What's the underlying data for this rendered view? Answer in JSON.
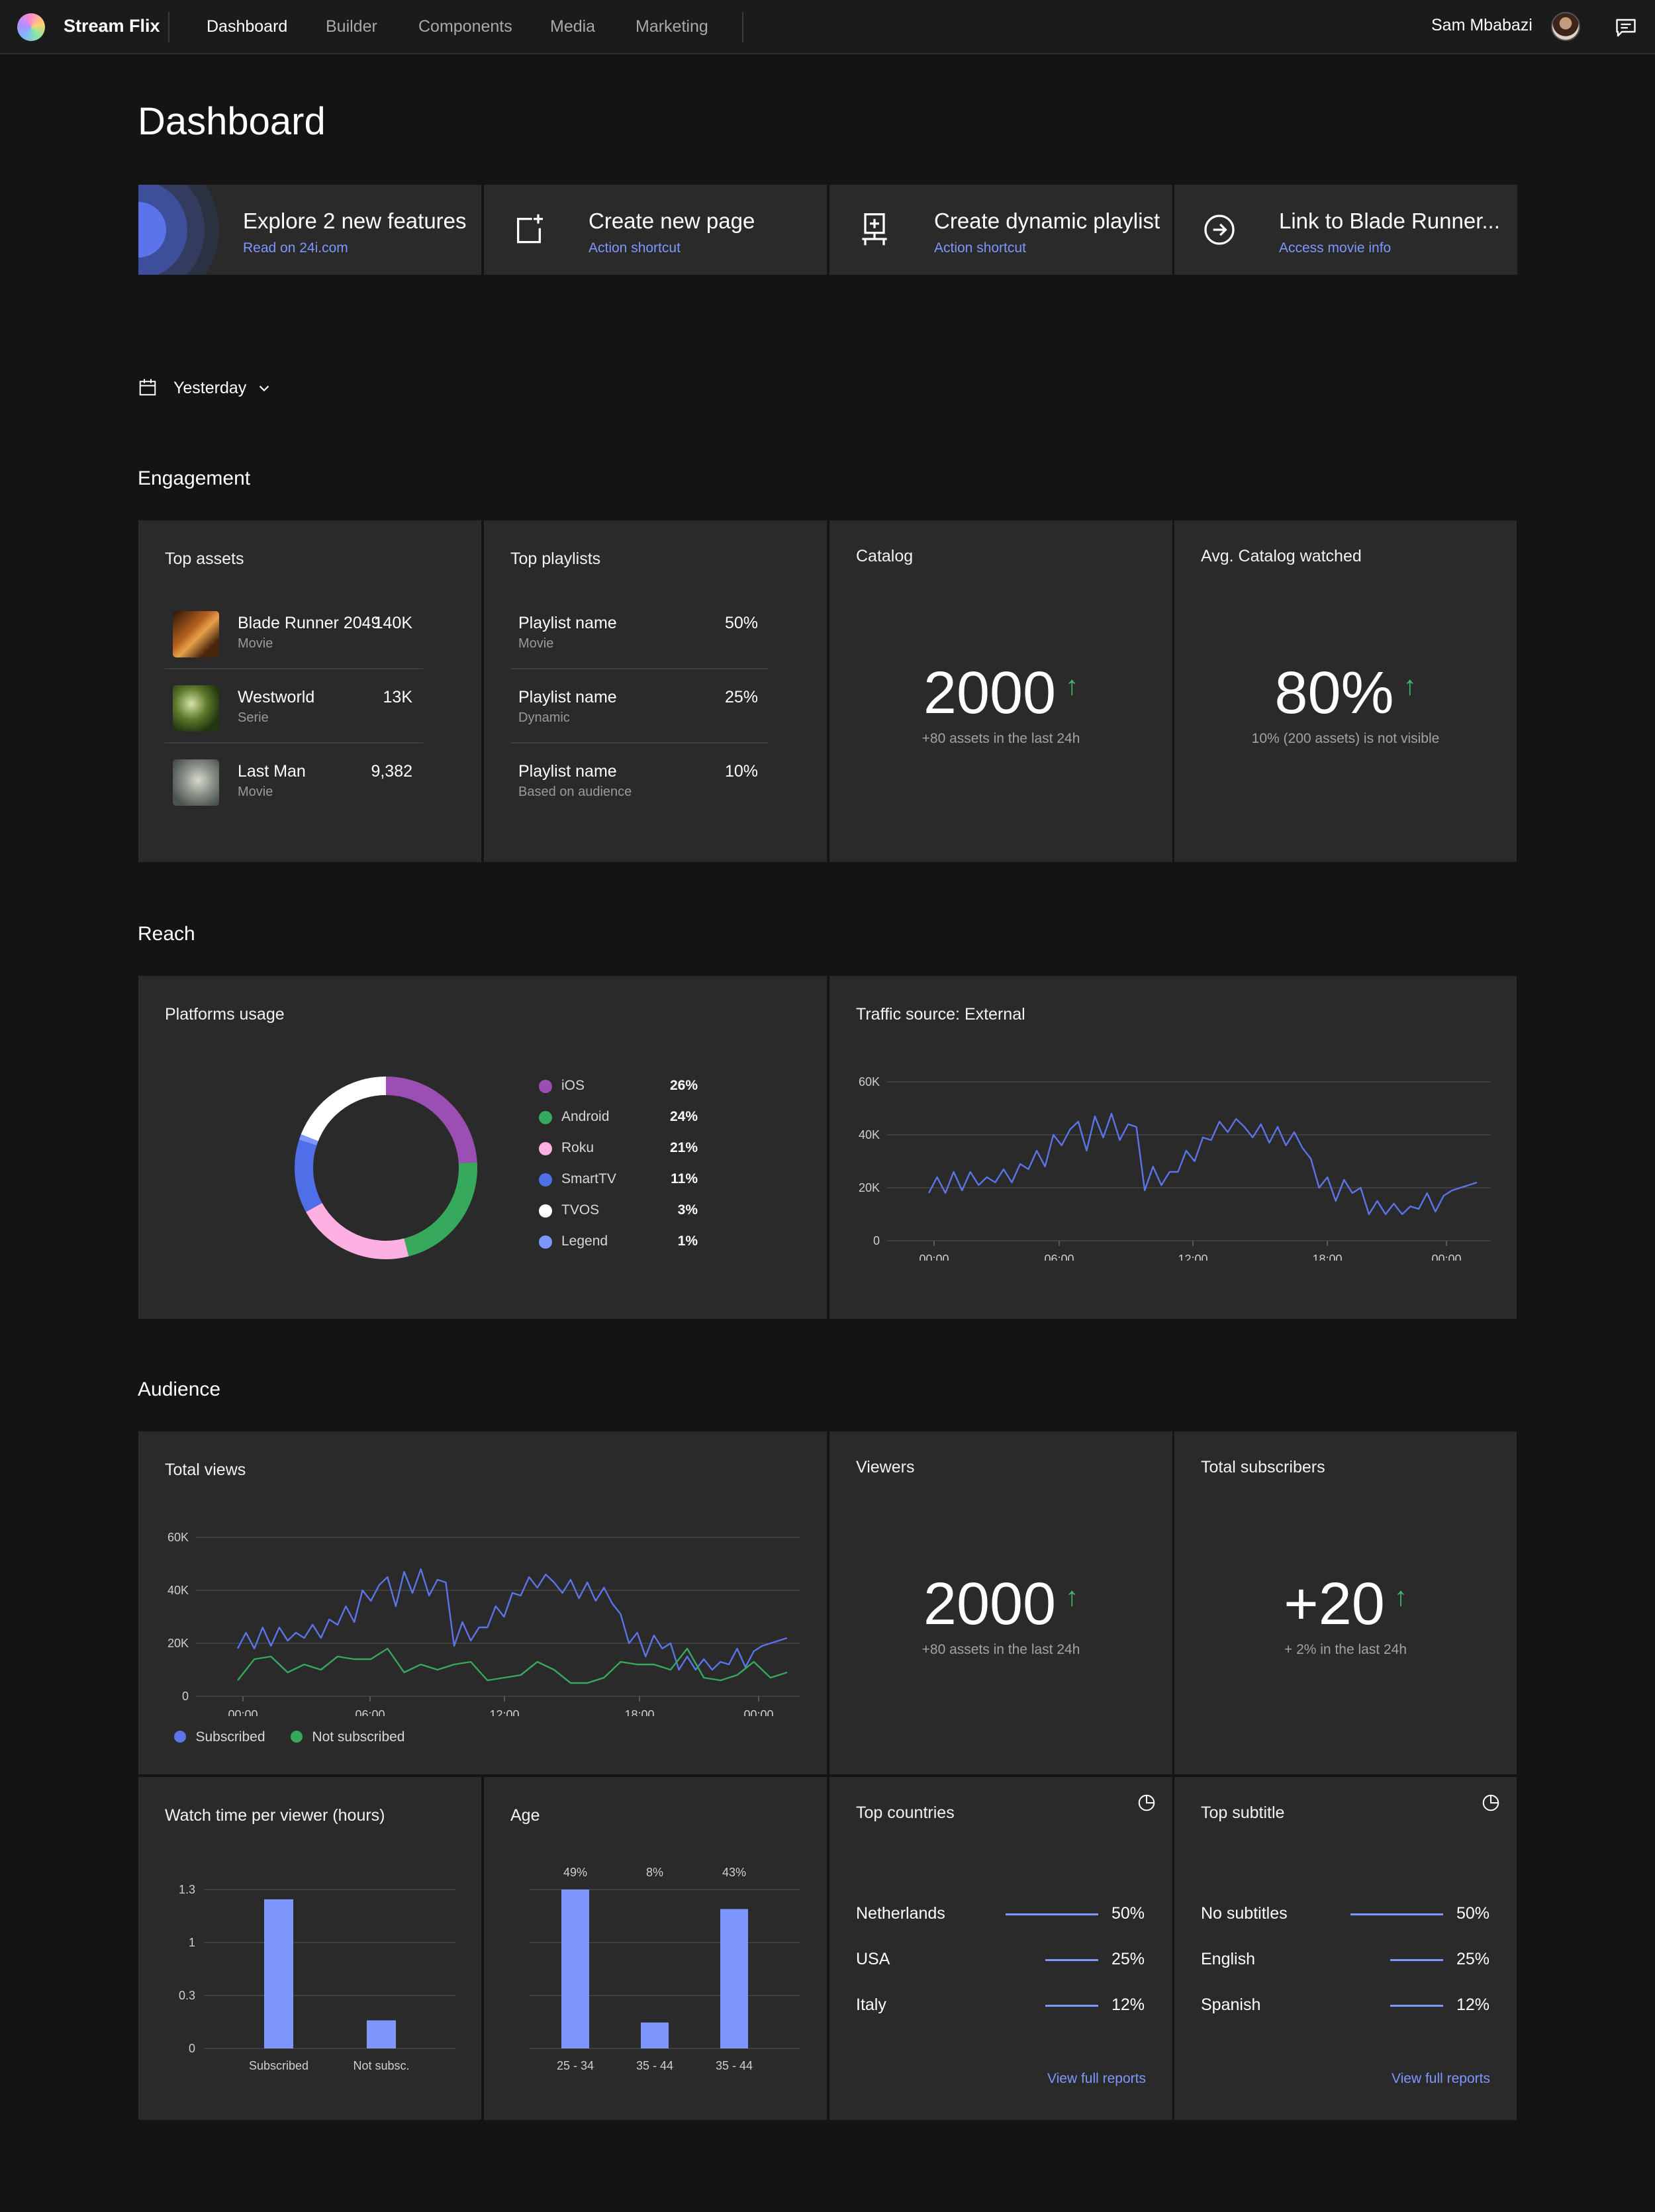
{
  "nav": {
    "brand": "Stream Flix",
    "items": [
      "Dashboard",
      "Builder",
      "Components",
      "Media",
      "Marketing"
    ],
    "user_name": "Sam Mbabazi"
  },
  "page": {
    "title": "Dashboard"
  },
  "shortcuts": [
    {
      "title": "Explore 2 new features",
      "sub": "Read on 24i.com"
    },
    {
      "title": "Create new page",
      "sub": "Action shortcut",
      "icon": "page-add-icon"
    },
    {
      "title": "Create dynamic playlist",
      "sub": "Action shortcut",
      "icon": "playlist-icon"
    },
    {
      "title": "Link to Blade Runner...",
      "sub": "Access movie info",
      "icon": "arrow-circle-icon"
    }
  ],
  "date_filter": {
    "label": "Yesterday"
  },
  "sections": {
    "engagement": "Engagement",
    "reach": "Reach",
    "audience": "Audience"
  },
  "top_assets": {
    "title": "Top assets",
    "items": [
      {
        "name": "Blade Runner 2049",
        "type": "Movie",
        "value": "140K"
      },
      {
        "name": "Westworld",
        "type": "Serie",
        "value": "13K"
      },
      {
        "name": "Last Man",
        "type": "Movie",
        "value": "9,382"
      }
    ]
  },
  "top_playlists": {
    "title": "Top playlists",
    "items": [
      {
        "name": "Playlist name",
        "type": "Movie",
        "value": "50%"
      },
      {
        "name": "Playlist name",
        "type": "Dynamic",
        "value": "25%"
      },
      {
        "name": "Playlist name",
        "type": "Based on audience",
        "value": "10%"
      }
    ]
  },
  "catalog": {
    "title": "Catalog",
    "value": "2000",
    "arrow": "↑",
    "sub": "+80 assets in the last 24h"
  },
  "avg_catalog": {
    "title": "Avg. Catalog watched",
    "value": "80%",
    "arrow": "↑",
    "sub": "10% (200 assets) is not visible"
  },
  "platforms": {
    "title": "Platforms usage",
    "items": [
      {
        "name": "iOS",
        "value": "26%",
        "color": "#9b4fb4"
      },
      {
        "name": "Android",
        "value": "24%",
        "color": "#37a95c"
      },
      {
        "name": "Roku",
        "value": "21%",
        "color": "#ffb0e3"
      },
      {
        "name": "SmartTV",
        "value": "11%",
        "color": "#4f6fe8"
      },
      {
        "name": "TVOS",
        "value": "3%",
        "color": "#ffffff"
      },
      {
        "name": "Legend",
        "value": "1%",
        "color": "#7d97ff"
      }
    ]
  },
  "traffic": {
    "title": "Traffic source: External"
  },
  "total_views": {
    "title": "Total views",
    "legend": [
      {
        "name": "Subscribed",
        "color": "#5b74ea"
      },
      {
        "name": "Not subscribed",
        "color": "#37a95c"
      }
    ]
  },
  "viewers": {
    "title": "Viewers",
    "value": "2000",
    "arrow": "↑",
    "sub": "+80 assets in the last 24h"
  },
  "subscribers": {
    "title": "Total subscribers",
    "value": "+20",
    "arrow": "↑",
    "sub": "+ 2% in the last 24h"
  },
  "watch_time": {
    "title": "Watch time per viewer (hours)"
  },
  "age": {
    "title": "Age"
  },
  "top_countries": {
    "title": "Top countries",
    "items": [
      {
        "name": "Netherlands",
        "value": "50%",
        "share": 0.5
      },
      {
        "name": "USA",
        "value": "25%",
        "share": 0.25
      },
      {
        "name": "Italy",
        "value": "12%",
        "share": 0.12
      }
    ],
    "link": "View full reports"
  },
  "top_subtitle": {
    "title": "Top subtitle",
    "items": [
      {
        "name": "No subtitles",
        "value": "50%",
        "share": 0.5
      },
      {
        "name": "English",
        "value": "25%",
        "share": 0.25
      },
      {
        "name": "Spanish",
        "value": "12%",
        "share": 0.12
      }
    ],
    "link": "View full reports"
  },
  "chart_data": [
    {
      "type": "pie",
      "categories": [
        "iOS",
        "Android",
        "Roku",
        "SmartTV",
        "TVOS",
        "Legend"
      ],
      "values": [
        26,
        24,
        21,
        11,
        3,
        1
      ]
    },
    {
      "type": "line",
      "title": "Traffic source: External",
      "x_ticks": [
        "00:00",
        "06:00",
        "12:00",
        "18:00",
        "00:00"
      ],
      "y_ticks": [
        "0",
        "20K",
        "40K",
        "60K"
      ],
      "ylim": [
        0,
        60000
      ],
      "grid": true,
      "series": [
        {
          "values": [
            18000,
            24000,
            18000,
            26000,
            19000,
            26000,
            21000,
            24000,
            22000,
            27000,
            22000,
            29000,
            27000,
            34000,
            28000,
            40000,
            36000,
            42000,
            45000,
            34000,
            47000,
            39000,
            48000,
            38000,
            44000,
            43000,
            19000,
            28000,
            21000,
            26000,
            26000,
            34000,
            30000,
            39000,
            38000,
            45000,
            41000,
            46000,
            43000,
            39000,
            44000,
            37000,
            43000,
            36000,
            41000,
            35000,
            31000,
            20000,
            24000,
            15000,
            23000,
            18000,
            20000,
            10000,
            15000,
            10000,
            14000,
            10000,
            13000,
            12000,
            18000,
            11000,
            17000,
            19000,
            20000,
            21000,
            22000
          ]
        }
      ]
    },
    {
      "type": "line",
      "title": "Total views",
      "x_ticks": [
        "00:00",
        "06:00",
        "12:00",
        "18:00",
        "00:00"
      ],
      "y_ticks": [
        "0",
        "20K",
        "40K",
        "60K"
      ],
      "ylim": [
        0,
        60000
      ],
      "grid": true,
      "series": [
        {
          "name": "Subscribed",
          "values": [
            18000,
            24000,
            18000,
            26000,
            19000,
            26000,
            21000,
            24000,
            22000,
            27000,
            22000,
            29000,
            27000,
            34000,
            28000,
            40000,
            36000,
            42000,
            45000,
            34000,
            47000,
            39000,
            48000,
            38000,
            44000,
            43000,
            19000,
            28000,
            21000,
            26000,
            26000,
            34000,
            30000,
            39000,
            38000,
            45000,
            41000,
            46000,
            43000,
            39000,
            44000,
            37000,
            43000,
            36000,
            41000,
            35000,
            31000,
            20000,
            24000,
            15000,
            23000,
            18000,
            20000,
            10000,
            15000,
            10000,
            14000,
            10000,
            13000,
            12000,
            18000,
            11000,
            17000,
            19000,
            20000,
            21000,
            22000
          ]
        },
        {
          "name": "Not subscribed",
          "values": [
            6000,
            14000,
            15000,
            9000,
            12000,
            10000,
            15000,
            14000,
            14000,
            18000,
            9000,
            12000,
            10000,
            12000,
            13000,
            6000,
            7000,
            8000,
            13000,
            10000,
            5000,
            5000,
            7000,
            13000,
            12000,
            12000,
            10000,
            18000,
            7000,
            6000,
            8000,
            13000,
            7000,
            9000
          ]
        }
      ]
    },
    {
      "type": "bar",
      "title": "Watch time per viewer (hours)",
      "categories": [
        "Subscribed",
        "Not subsc."
      ],
      "values": [
        1.22,
        0.23
      ],
      "y_ticks": [
        "0",
        "0.3",
        "1",
        "1.3"
      ]
    },
    {
      "type": "bar",
      "title": "Age",
      "categories": [
        "25 - 34",
        "35 - 44",
        "35 - 44"
      ],
      "values": [
        49,
        8,
        43
      ],
      "data_labels": [
        "49%",
        "8%",
        "43%"
      ]
    }
  ]
}
